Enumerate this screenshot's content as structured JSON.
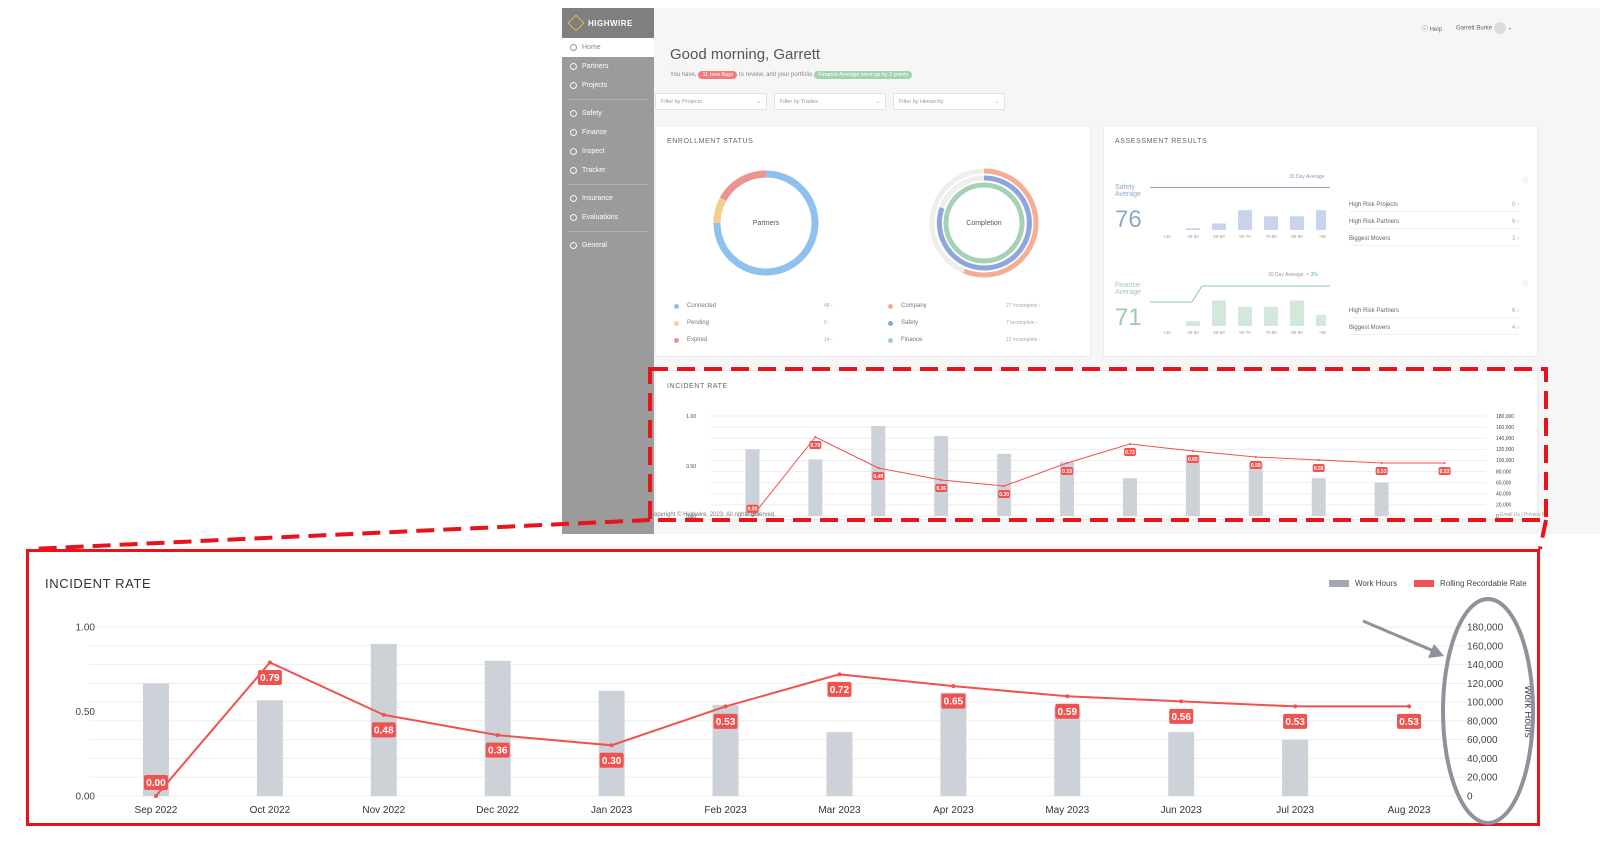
{
  "app": {
    "brand": "HIGHWIRE",
    "nav": [
      {
        "label": "Home",
        "icon": "home-icon",
        "active": true
      },
      {
        "label": "Partners",
        "icon": "partners-icon"
      },
      {
        "label": "Projects",
        "icon": "projects-icon"
      },
      {
        "sep": true
      },
      {
        "label": "Safety",
        "icon": "safety-icon"
      },
      {
        "label": "Finance",
        "icon": "finance-icon"
      },
      {
        "label": "Inspect",
        "icon": "inspect-icon"
      },
      {
        "label": "Tracker",
        "icon": "tracker-icon"
      },
      {
        "sep": true
      },
      {
        "label": "Insurance",
        "icon": "insurance-icon"
      },
      {
        "label": "Evaluations",
        "icon": "evaluations-icon"
      },
      {
        "sep": true
      },
      {
        "label": "General",
        "icon": "general-icon"
      }
    ],
    "topbar": {
      "help": "Help",
      "user": "Garrett Burke"
    },
    "greeting": "Good morning, Garrett",
    "subline": {
      "pre": "You have,",
      "flags": "11 new flags",
      "mid": "to review, and your portfolio",
      "badge": "Finance Average went up by 2 points"
    },
    "filters": [
      "Filter by Projects",
      "Filter by Trades",
      "Filter by Hierarchy"
    ],
    "enrollment": {
      "title": "ENROLLMENT STATUS",
      "donut1_label": "Partners",
      "donut2_label": "Completion",
      "partners_legend": [
        {
          "label": "Connected",
          "count": "48",
          "color": "#8fc1ee"
        },
        {
          "label": "Pending",
          "count": "0",
          "color": "#f7cf8a"
        },
        {
          "label": "Expired",
          "count": "14",
          "color": "#f0908f"
        }
      ],
      "completion_legend": [
        {
          "label": "Company",
          "count": "27 Incomplete",
          "color": "#f5ad93"
        },
        {
          "label": "Safety",
          "count": "7 Incomplete",
          "color": "#8ea6d9"
        },
        {
          "label": "Finance",
          "count": "12 Incomplete",
          "color": "#a6d1b4"
        }
      ]
    },
    "assessment": {
      "title": "ASSESSMENT RESULTS",
      "safety": {
        "label": "Safety Average",
        "value": "76",
        "avg_label": "30 Day Average",
        "bars": [
          0.05,
          0.18,
          0.55,
          0.38,
          0.38,
          0.55
        ]
      },
      "finance": {
        "label": "Finance Average",
        "value": "71",
        "avg_label": "30 Day Average",
        "change": "3%",
        "bars": [
          0.15,
          0.8,
          0.6,
          0.6,
          0.8,
          0.35
        ]
      },
      "bins": [
        "<40",
        "40-50",
        "50-60",
        "60-70",
        "70-80",
        "80-90",
        ">90"
      ],
      "safety_links": [
        {
          "label": "High Risk Projects",
          "count": "0"
        },
        {
          "label": "High Risk Partners",
          "count": "6"
        },
        {
          "label": "Biggest Movers",
          "count": "3"
        }
      ],
      "finance_links": [
        {
          "label": "High Risk Partners",
          "count": "6"
        },
        {
          "label": "Biggest Movers",
          "count": "4"
        }
      ]
    },
    "incident_small_title": "INCIDENT RATE",
    "footer": "opyright © Highwire, 2023. All rights reserved.",
    "footer_right": "Email Us  |  Privacy Po"
  },
  "zoom": {
    "title": "INCIDENT RATE",
    "legend_bar": "Work Hours",
    "legend_line": "Rolling Recordable Rate",
    "y_right_label": "Work Hours"
  },
  "chart_data": {
    "type": "bar",
    "title": "INCIDENT RATE",
    "categories": [
      "Sep 2022",
      "Oct 2022",
      "Nov 2022",
      "Dec 2022",
      "Jan 2023",
      "Feb 2023",
      "Mar 2023",
      "Apr 2023",
      "May 2023",
      "Jun 2023",
      "Jul 2023",
      "Aug 2023"
    ],
    "series": [
      {
        "name": "Work Hours",
        "type": "bar",
        "axis": "right",
        "color": "#c9ced6",
        "values": [
          120000,
          102000,
          162000,
          144000,
          112000,
          97000,
          68000,
          110000,
          95000,
          68000,
          60000,
          null
        ]
      },
      {
        "name": "Rolling Recordable Rate",
        "type": "line",
        "axis": "left",
        "color": "#f0524f",
        "values": [
          0.0,
          0.79,
          0.48,
          0.36,
          0.3,
          0.53,
          0.72,
          0.65,
          0.59,
          0.56,
          0.53,
          0.53
        ],
        "labels": [
          "0.00",
          "0.79",
          "0.48",
          "0.36",
          "0.30",
          "0.53",
          "0.72",
          "0.65",
          "0.59",
          "0.56",
          "0.53",
          "0.53"
        ]
      }
    ],
    "y_left": {
      "ticks": [
        "0.00",
        "0.50",
        "1.00"
      ],
      "range": [
        0,
        1.0
      ]
    },
    "y_right": {
      "label": "Work Hours",
      "ticks": [
        "0",
        "20,000",
        "40,000",
        "60,000",
        "80,000",
        "100,000",
        "120,000",
        "140,000",
        "160,000",
        "180,000"
      ],
      "range": [
        0,
        180000
      ]
    },
    "grid": true,
    "legend": "top-right"
  }
}
